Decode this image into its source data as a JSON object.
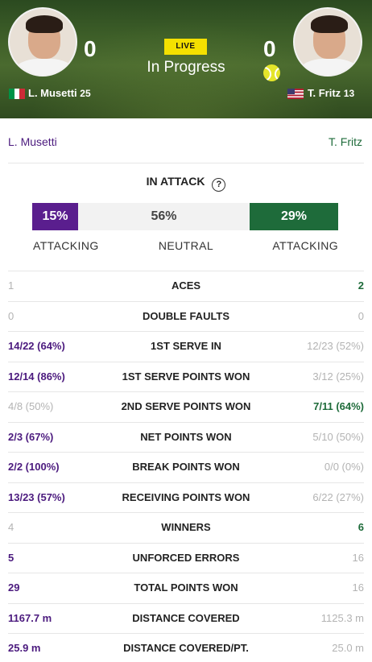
{
  "match": {
    "status_badge": "LIVE",
    "status_text": "In Progress"
  },
  "players": {
    "left": {
      "name": "L. Musetti",
      "seed": "25",
      "score": "0",
      "flag_country": "Italy"
    },
    "right": {
      "name": "T. Fritz",
      "seed": "13",
      "score": "0",
      "flag_country": "USA",
      "serving": true
    }
  },
  "names_row": {
    "left": "L. Musetti",
    "right": "T. Fritz"
  },
  "in_attack": {
    "title": "IN ATTACK",
    "help_glyph": "?",
    "left_pct": "15%",
    "neutral_pct": "56%",
    "right_pct": "29%",
    "left_label": "ATTACKING",
    "neutral_label": "NEUTRAL",
    "right_label": "ATTACKING"
  },
  "stats": [
    {
      "label": "ACES",
      "left": "1",
      "right": "2",
      "leader": "right"
    },
    {
      "label": "DOUBLE FAULTS",
      "left": "0",
      "right": "0",
      "leader": "none"
    },
    {
      "label": "1ST SERVE IN",
      "left": "14/22 (64%)",
      "right": "12/23 (52%)",
      "leader": "left"
    },
    {
      "label": "1ST SERVE POINTS WON",
      "left": "12/14 (86%)",
      "right": "3/12 (25%)",
      "leader": "left"
    },
    {
      "label": "2ND SERVE POINTS WON",
      "left": "4/8 (50%)",
      "right": "7/11 (64%)",
      "leader": "right"
    },
    {
      "label": "NET POINTS WON",
      "left": "2/3 (67%)",
      "right": "5/10 (50%)",
      "leader": "left"
    },
    {
      "label": "BREAK POINTS WON",
      "left": "2/2 (100%)",
      "right": "0/0 (0%)",
      "leader": "left"
    },
    {
      "label": "RECEIVING POINTS WON",
      "left": "13/23 (57%)",
      "right": "6/22 (27%)",
      "leader": "left"
    },
    {
      "label": "WINNERS",
      "left": "4",
      "right": "6",
      "leader": "right"
    },
    {
      "label": "UNFORCED ERRORS",
      "left": "5",
      "right": "16",
      "leader": "left"
    },
    {
      "label": "TOTAL POINTS WON",
      "left": "29",
      "right": "16",
      "leader": "left"
    },
    {
      "label": "DISTANCE COVERED",
      "left": "1167.7 m",
      "right": "1125.3 m",
      "leader": "left"
    },
    {
      "label": "DISTANCE COVERED/PT.",
      "left": "25.9 m",
      "right": "25.0 m",
      "leader": "left"
    }
  ],
  "colors": {
    "left_player": "#4b1a7e",
    "left_bar": "#5a1e8e",
    "right_player": "#1e6b3a",
    "live_badge": "#f4e000",
    "muted": "#b3b3b3"
  }
}
